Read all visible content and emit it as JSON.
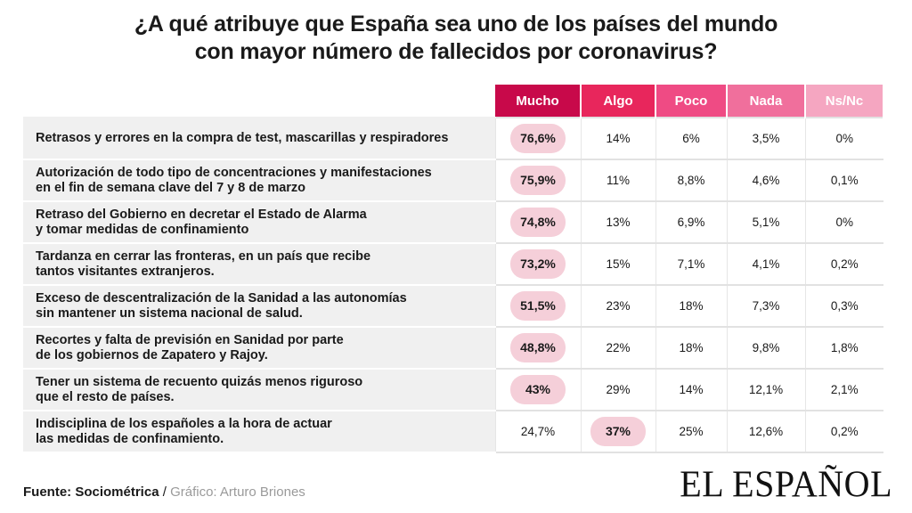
{
  "header": {
    "title_line1": "¿A qué atribuye que España sea uno de los países del mundo",
    "title_line2": "con mayor número de fallecidos por coronavirus?"
  },
  "colors": {
    "mucho": "#c8094a",
    "algo": "#e8265c",
    "poco": "#ef4b84",
    "nada": "#f06f9c",
    "nsnc": "#f5a6c1",
    "highlight": "#f5cfd9"
  },
  "chart_data": {
    "type": "table",
    "title": "¿A qué atribuye que España sea uno de los países del mundo con mayor número de fallecidos por coronavirus?",
    "columns": [
      "Mucho",
      "Algo",
      "Poco",
      "Nada",
      "Ns/Nc"
    ],
    "rows": [
      {
        "line1": "Retrasos y errores en la compra de test, mascarillas y respiradores",
        "line2": "",
        "values": [
          "76,6%",
          "14%",
          "6%",
          "3,5%",
          "0%"
        ],
        "highlight": 0
      },
      {
        "line1": "Autorización de todo tipo de concentraciones y manifestaciones",
        "line2": "en el fin de semana clave del 7 y 8 de marzo",
        "values": [
          "75,9%",
          "11%",
          "8,8%",
          "4,6%",
          "0,1%"
        ],
        "highlight": 0
      },
      {
        "line1": "Retraso del Gobierno en decretar el Estado de Alarma",
        "line2": "y tomar medidas de confinamiento",
        "values": [
          "74,8%",
          "13%",
          "6,9%",
          "5,1%",
          "0%"
        ],
        "highlight": 0
      },
      {
        "line1": "Tardanza en cerrar las fronteras, en un país que recibe",
        "line2": "tantos visitantes extranjeros.",
        "values": [
          "73,2%",
          "15%",
          "7,1%",
          "4,1%",
          "0,2%"
        ],
        "highlight": 0
      },
      {
        "line1": "Exceso de descentralización de la Sanidad a las autonomías",
        "line2": "sin mantener un sistema nacional de salud.",
        "values": [
          "51,5%",
          "23%",
          "18%",
          "7,3%",
          "0,3%"
        ],
        "highlight": 0
      },
      {
        "line1": "Recortes y falta de previsión en Sanidad por parte",
        "line2": "de los gobiernos de Zapatero y Rajoy.",
        "values": [
          "48,8%",
          "22%",
          "18%",
          "9,8%",
          "1,8%"
        ],
        "highlight": 0
      },
      {
        "line1": "Tener un sistema de recuento quizás menos riguroso",
        "line2": "que el resto de países.",
        "values": [
          "43%",
          "29%",
          "14%",
          "12,1%",
          "2,1%"
        ],
        "highlight": 0
      },
      {
        "line1": "Indisciplina de los españoles a la hora de actuar",
        "line2": "las medidas de confinamiento.",
        "values": [
          "24,7%",
          "37%",
          "25%",
          "12,6%",
          "0,2%"
        ],
        "highlight": 1
      }
    ]
  },
  "footer": {
    "source_label": "Fuente: Sociométrica",
    "separator": "/",
    "credit": "Gráfico: Arturo Briones",
    "logo": "EL ESPAÑOL"
  }
}
